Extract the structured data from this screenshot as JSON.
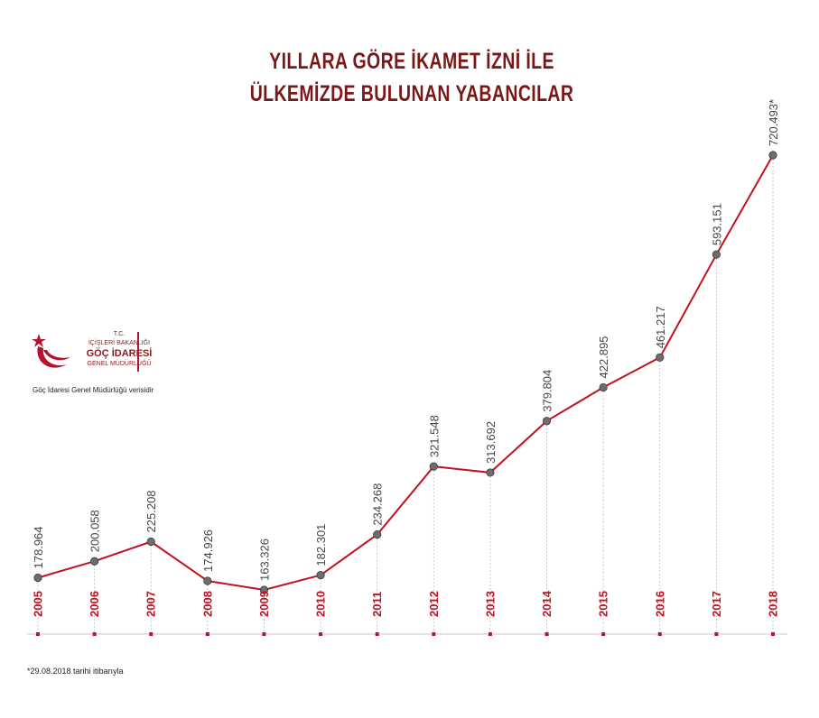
{
  "title_line1": "YILLARA GÖRE İKAMET İZNİ İLE",
  "title_line2": "ÜLKEMİZDE BULUNAN YABANCILAR",
  "logo": {
    "tc": "T.C.",
    "ministry": "İÇİŞLERİ BAKANLIĞI",
    "agency": "GÖÇ İDARESİ",
    "directorate": "GENEL MÜDÜRLÜĞÜ"
  },
  "source_note": "Göç İdaresi Genel Müdürlüğü verisidir",
  "footnote": "*29.08.2018 tarihi itibarıyla",
  "colors": {
    "line": "#c1121f",
    "marker": "#6d6d6d",
    "title": "#7a1717",
    "axis_label": "#c1121f"
  },
  "chart_data": {
    "type": "line",
    "title": "YILLARA GÖRE İKAMET İZNİ İLE ÜLKEMİZDE BULUNAN YABANCILAR",
    "categories": [
      "2005",
      "2006",
      "2007",
      "2008",
      "2009",
      "2010",
      "2011",
      "2012",
      "2013",
      "2014",
      "2015",
      "2016",
      "2017",
      "2018"
    ],
    "values": [
      178964,
      200058,
      225208,
      174926,
      163326,
      182301,
      234268,
      321548,
      313692,
      379804,
      422895,
      461217,
      593151,
      720493
    ],
    "data_labels": [
      "178.964",
      "200.058",
      "225.208",
      "174.926",
      "163.326",
      "182.301",
      "234.268",
      "321.548",
      "313.692",
      "379.804",
      "422.895",
      "461.217",
      "593.151",
      "720.493*"
    ],
    "ylim": [
      160000,
      730000
    ],
    "grid": false,
    "legend": "none"
  }
}
